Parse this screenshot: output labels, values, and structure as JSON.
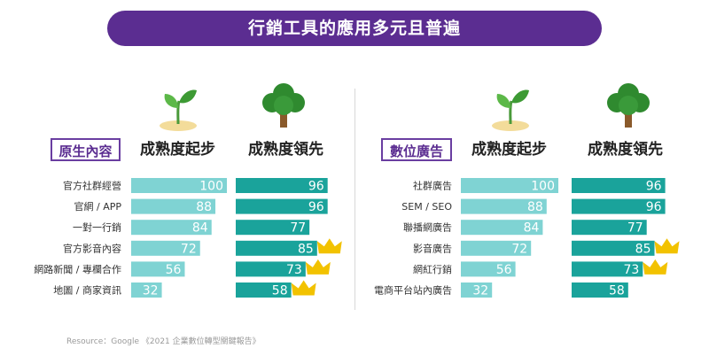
{
  "title": "行銷工具的應用多元且普遍",
  "source": "Resource：Google 《2021 企業數位轉型關鍵報告》",
  "colors": {
    "accent": "#5b2d91",
    "bar_start": "#7fd3d3",
    "bar_lead": "#1aa39b",
    "crown": "#f2c200"
  },
  "chart_data": [
    {
      "type": "bar",
      "category_label": "原生內容",
      "categories": [
        "官方社群經營",
        "官網 / APP",
        "一對一行銷",
        "官方影音內容",
        "網路新聞 / 專欄合作",
        "地圖 / 商家資訊"
      ],
      "series": [
        {
          "name": "成熟度起步",
          "values": [
            100,
            88,
            84,
            72,
            56,
            32
          ]
        },
        {
          "name": "成熟度領先",
          "values": [
            96,
            96,
            77,
            85,
            73,
            58
          ]
        }
      ],
      "highlighted": [
        "官方影音內容",
        "網路新聞 / 專欄合作",
        "地圖 / 商家資訊"
      ],
      "ylim": [
        0,
        100
      ]
    },
    {
      "type": "bar",
      "category_label": "數位廣告",
      "categories": [
        "社群廣告",
        "SEM / SEO",
        "聯播網廣告",
        "影音廣告",
        "網紅行銷",
        "電商平台站內廣告"
      ],
      "series": [
        {
          "name": "成熟度起步",
          "values": [
            100,
            88,
            84,
            72,
            56,
            32
          ]
        },
        {
          "name": "成熟度領先",
          "values": [
            96,
            96,
            77,
            85,
            73,
            58
          ]
        }
      ],
      "highlighted": [
        "影音廣告",
        "網紅行銷"
      ],
      "ylim": [
        0,
        100
      ]
    }
  ]
}
